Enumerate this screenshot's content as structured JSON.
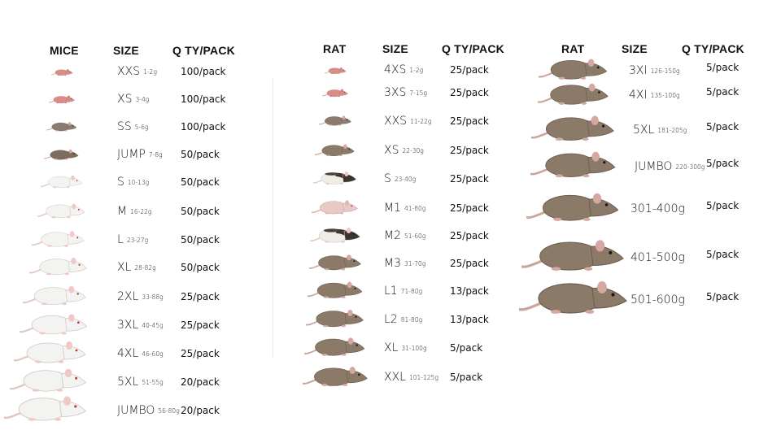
{
  "headers": {
    "mice": "MICE",
    "size": "SIZE",
    "qty": "Q TY/PACK",
    "rat": "RAT"
  },
  "mice": [
    {
      "size": "XXS",
      "weight": "1-2g",
      "qty": "100/pack",
      "kind": "pinky"
    },
    {
      "size": "XS",
      "weight": "3-4g",
      "qty": "100/pack",
      "kind": "pinky"
    },
    {
      "size": "SS",
      "weight": "5-6g",
      "qty": "100/pack",
      "kind": "fuzzy"
    },
    {
      "size": "JUMP",
      "weight": "7-8g",
      "qty": "50/pack",
      "kind": "hopper"
    },
    {
      "size": "S",
      "weight": "10-13g",
      "qty": "50/pack",
      "kind": "white"
    },
    {
      "size": "M",
      "weight": "16-22g",
      "qty": "50/pack",
      "kind": "white"
    },
    {
      "size": "L",
      "weight": "23-27g",
      "qty": "50/pack",
      "kind": "white"
    },
    {
      "size": "XL",
      "weight": "28-82g",
      "qty": "50/pack",
      "kind": "white"
    },
    {
      "size": "2XL",
      "weight": "33-88g",
      "qty": "25/pack",
      "kind": "white"
    },
    {
      "size": "3XL",
      "weight": "40-45g",
      "qty": "25/pack",
      "kind": "white"
    },
    {
      "size": "4XL",
      "weight": "46-60g",
      "qty": "25/pack",
      "kind": "white"
    },
    {
      "size": "5XL",
      "weight": "51-55g",
      "qty": "20/pack",
      "kind": "white"
    },
    {
      "size": "JUMBO",
      "weight": "56-80g",
      "qty": "20/pack",
      "kind": "white"
    }
  ],
  "rats1": [
    {
      "size": "4XS",
      "weight": "1-2g",
      "qty": "25/pack",
      "kind": "pinky"
    },
    {
      "size": "3XS",
      "weight": "7-15g",
      "qty": "25/pack",
      "kind": "pinky"
    },
    {
      "size": "XXS",
      "weight": "11-22g",
      "qty": "25/pack",
      "kind": "fuzzy"
    },
    {
      "size": "XS",
      "weight": "22-30g",
      "qty": "25/pack",
      "kind": "brown"
    },
    {
      "size": "S",
      "weight": "23-40g",
      "qty": "25/pack",
      "kind": "hooded"
    },
    {
      "size": "M1",
      "weight": "41-80g",
      "qty": "25/pack",
      "kind": "pink"
    },
    {
      "size": "M2",
      "weight": "51-60g",
      "qty": "25/pack",
      "kind": "hooded"
    },
    {
      "size": "M3",
      "weight": "31-70g",
      "qty": "25/pack",
      "kind": "brown"
    },
    {
      "size": "L1",
      "weight": "71-80g",
      "qty": "13/pack",
      "kind": "brown"
    },
    {
      "size": "L2",
      "weight": "81-80g",
      "qty": "13/pack",
      "kind": "brown"
    },
    {
      "size": "XL",
      "weight": "31-100g",
      "qty": "5/pack",
      "kind": "brown"
    },
    {
      "size": "XXL",
      "weight": "101-125g",
      "qty": "5/pack",
      "kind": "brown"
    }
  ],
  "rats2": [
    {
      "size": "3XI",
      "weight": "126-150g",
      "qty": "5/pack",
      "kind": "brown"
    },
    {
      "size": "4XI",
      "weight": "135-100g",
      "qty": "5/pack",
      "kind": "brown"
    },
    {
      "size": "5XL",
      "weight": "181-205g",
      "qty": "5/pack",
      "kind": "brown"
    },
    {
      "size": "JUMBO",
      "weight": "220-300g",
      "qty": "5/pack",
      "kind": "brown"
    },
    {
      "size": "301-400g",
      "weight": "",
      "qty": "5/pack",
      "kind": "brown"
    },
    {
      "size": "401-500g",
      "weight": "",
      "qty": "5/pack",
      "kind": "brown"
    },
    {
      "size": "501-600g",
      "weight": "",
      "qty": "5/pack",
      "kind": "brown"
    }
  ],
  "colors": {
    "pinky": "#d98d88",
    "fuzzy": "#8c7b70",
    "hopper": "#7e6c5e",
    "white": "#f3f3f1",
    "brown": "#8b7a68",
    "hooded": "#f0ece6",
    "pink": "#e7c9c6"
  }
}
